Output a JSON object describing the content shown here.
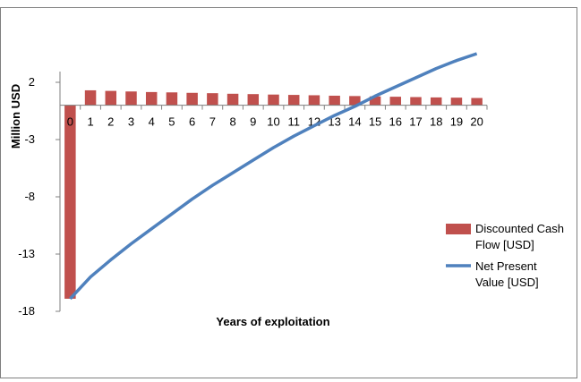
{
  "chart_data": {
    "type": "bar+line",
    "xlabel": "Years of exploitation",
    "ylabel": "Million USD",
    "ylim": [
      -18,
      2
    ],
    "yticks": [
      2,
      -3,
      -8,
      -13,
      -18
    ],
    "categories": [
      "0",
      "1",
      "2",
      "3",
      "4",
      "5",
      "6",
      "7",
      "8",
      "9",
      "10",
      "11",
      "12",
      "13",
      "14",
      "15",
      "16",
      "17",
      "18",
      "19",
      "20"
    ],
    "series": [
      {
        "name": "Discounted Cash Flow [USD]",
        "kind": "bar",
        "color": "#C0504D",
        "values": [
          -16.9,
          1.3,
          1.25,
          1.2,
          1.15,
          1.12,
          1.08,
          1.05,
          1.0,
          0.97,
          0.93,
          0.9,
          0.87,
          0.83,
          0.8,
          0.77,
          0.74,
          0.71,
          0.68,
          0.66,
          0.63
        ]
      },
      {
        "name": "Net Present Value [USD]",
        "kind": "line",
        "color": "#4F81BD",
        "values": [
          -16.9,
          -15.0,
          -13.5,
          -12.1,
          -10.8,
          -9.5,
          -8.2,
          -7.0,
          -5.9,
          -4.8,
          -3.7,
          -2.7,
          -1.8,
          -0.9,
          -0.1,
          0.8,
          1.6,
          2.4,
          3.2,
          3.9,
          4.5
        ]
      }
    ],
    "legend": "right",
    "grid": false
  }
}
